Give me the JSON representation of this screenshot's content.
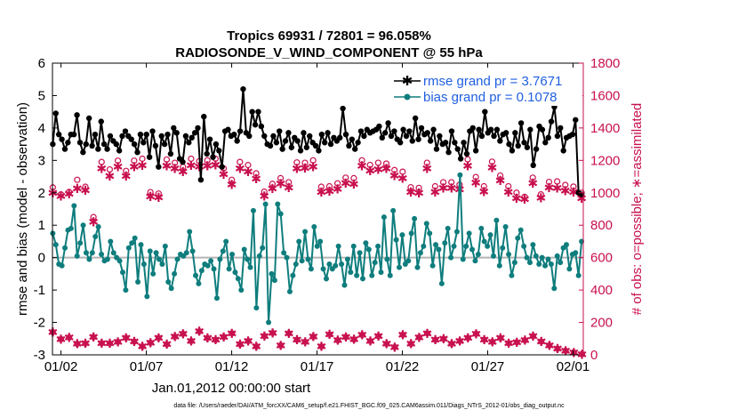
{
  "chart_data": {
    "type": "line",
    "title_line1": "Tropics 69931 / 72801 = 96.058%",
    "title_line2": "RADIOSONDE_V_WIND_COMPONENT @ 55 hPa",
    "xlabel": "Jan.01,2012 00:00:00 start",
    "ylabel_left": "rmse and bias (model - observation)",
    "ylabel_right": "# of obs: o=possible; ∗=assimilated",
    "footnote": "data file: /Users/raeder/DAI/ATM_forcXX/CAM6_setup/f.e21.FHIST_BGC.f09_025.CAM6assim.011/Diags_NTrS_2012-01/obs_diag_output.nc",
    "xlim": [
      0.5,
      31.6
    ],
    "ylim_left": [
      -3,
      6
    ],
    "ylim_right": [
      0,
      1800
    ],
    "x_ticks": [
      {
        "x": 1,
        "label": "01/02"
      },
      {
        "x": 6,
        "label": "01/07"
      },
      {
        "x": 11,
        "label": "01/12"
      },
      {
        "x": 16,
        "label": "01/17"
      },
      {
        "x": 21,
        "label": "01/22"
      },
      {
        "x": 26,
        "label": "01/27"
      },
      {
        "x": 31,
        "label": "02/01"
      }
    ],
    "y_ticks_left": [
      -3,
      -2,
      -1,
      0,
      1,
      2,
      3,
      4,
      5,
      6
    ],
    "y_ticks_right": [
      0,
      200,
      400,
      600,
      800,
      1000,
      1200,
      1400,
      1600,
      1800
    ],
    "colors": {
      "rmse": "#000000",
      "bias": "#0f7d7d",
      "obs": "#c8104f",
      "zero": "#b4b4b4",
      "legend_text": "#1f5fe0"
    },
    "legend": [
      {
        "name": "rmse grand pr = 3.7671",
        "series": "rmse"
      },
      {
        "name": "bias grand pr = 0.1078",
        "series": "bias"
      }
    ],
    "series": [
      {
        "name": "rmse",
        "axis": "left",
        "values": [
          3.5,
          4.45,
          3.8,
          3.65,
          3.35,
          3.55,
          3.8,
          3.8,
          4.4,
          3.55,
          3.25,
          3.5,
          4.3,
          3.45,
          3.8,
          3.35,
          4.2,
          3.5,
          3.35,
          3.75,
          3.6,
          3.5,
          3.3,
          3.75,
          3.9,
          3.75,
          3.65,
          3.5,
          3.25,
          3.8,
          3.55,
          3.8,
          3.1,
          3.9,
          3.45,
          2.8,
          3.75,
          3.5,
          3.8,
          3.2,
          4.0,
          3.85,
          3.05,
          2.95,
          3.75,
          3.55,
          3.7,
          3.85,
          4.0,
          2.4,
          4.35,
          3.2,
          3.65,
          3.1,
          3.5,
          3.3,
          2.8,
          3.9,
          3.95,
          3.75,
          3.8,
          3.6,
          3.9,
          5.2,
          3.85,
          3.75,
          4.5,
          4.1,
          4.5,
          4.05,
          3.75,
          3.5,
          3.45,
          3.75,
          3.55,
          3.9,
          3.35,
          3.6,
          3.85,
          3.4,
          3.7,
          3.6,
          3.3,
          3.85,
          3.4,
          3.75,
          3.55,
          3.45,
          3.3,
          3.8,
          3.55,
          3.85,
          3.5,
          3.7,
          3.6,
          3.7,
          4.6,
          3.8,
          3.45,
          3.65,
          3.35,
          3.55,
          3.9,
          3.75,
          3.95,
          3.85,
          3.9,
          3.95,
          4.05,
          3.7,
          3.85,
          4.15,
          3.75,
          3.9,
          3.65,
          3.55,
          3.95,
          3.75,
          3.9,
          3.6,
          4.3,
          3.65,
          4.0,
          3.8,
          3.85,
          3.6,
          3.95,
          3.35,
          3.75,
          3.5,
          3.55,
          3.25,
          3.9,
          3.55,
          3.35,
          3.05,
          3.55,
          3.2,
          3.9,
          4.0,
          3.3,
          3.95,
          3.75,
          4.5,
          3.85,
          3.95,
          3.75,
          3.95,
          3.6,
          3.8,
          3.85,
          3.5,
          3.3,
          3.85,
          3.45,
          4.15,
          3.55,
          3.4,
          3.95,
          2.85,
          3.35,
          4.05,
          3.95,
          3.55,
          3.7,
          4.2,
          4.65,
          3.75,
          4.0,
          3.3,
          3.7,
          3.75,
          3.8,
          4.25,
          2.0,
          1.95
        ]
      },
      {
        "name": "bias",
        "axis": "left",
        "values": [
          0.75,
          0.4,
          -0.2,
          -0.25,
          0.3,
          0.85,
          0.9,
          1.6,
          0.05,
          0.45,
          1.0,
          0.15,
          -0.05,
          0.15,
          0.65,
          0.95,
          0.1,
          -0.1,
          -0.05,
          0.5,
          0.15,
          0.0,
          -0.1,
          -0.45,
          -1.0,
          0.3,
          0.45,
          0.6,
          -0.75,
          0.4,
          -0.2,
          -1.2,
          0.2,
          -0.5,
          0.15,
          -0.05,
          -0.2,
          0.35,
          -0.75,
          -0.95,
          -0.5,
          -0.05,
          0.1,
          0.05,
          0.15,
          0.8,
          0.2,
          -0.55,
          -0.8,
          -0.4,
          -0.2,
          -0.25,
          -0.1,
          -0.35,
          -1.25,
          -0.05,
          0.2,
          0.5,
          -0.35,
          0.1,
          -0.45,
          -0.65,
          -1.0,
          0.25,
          -0.05,
          -0.3,
          1.45,
          -1.55,
          0.05,
          0.3,
          1.65,
          -2.0,
          -0.5,
          -0.7,
          1.65,
          1.35,
          0.15,
          0.0,
          -1.05,
          -0.55,
          -0.2,
          0.5,
          -0.1,
          0.8,
          -0.05,
          -0.35,
          0.95,
          0.35,
          0.5,
          -0.35,
          -0.65,
          -0.2,
          -0.35,
          -0.25,
          0.35,
          -0.2,
          -0.85,
          -0.05,
          -0.45,
          0.35,
          -0.55,
          0.15,
          -0.65,
          0.45,
          0.25,
          -0.55,
          -0.15,
          0.35,
          -0.45,
          1.25,
          -0.05,
          -0.55,
          1.45,
          0.55,
          -0.3,
          0.7,
          -0.2,
          -0.1,
          0.75,
          1.2,
          -0.3,
          0.15,
          0.35,
          1.05,
          0.75,
          -0.25,
          0.4,
          0.25,
          -0.8,
          0.45,
          0.9,
          0.0,
          0.35,
          0.8,
          2.55,
          -0.05,
          0.35,
          0.75,
          0.25,
          -0.1,
          0.1,
          0.9,
          0.5,
          0.35,
          0.7,
          0.05,
          1.15,
          -0.25,
          0.3,
          0.95,
          0.1,
          -0.55,
          -0.15,
          0.6,
          0.85,
          0.35,
          0.0,
          -0.15,
          0.4,
          0.05,
          -0.2,
          0.0,
          -0.25,
          -0.05,
          -0.2,
          -0.95,
          0.05,
          -0.15,
          0.3,
          0.4,
          -0.35,
          0.1,
          0.15,
          -0.55,
          0.5
        ]
      },
      {
        "name": "possible",
        "axis": "right",
        "marker": "o",
        "values": [
          1033,
          990,
          1005,
          1080,
          1037,
          850,
          1190,
          1144,
          1198,
          1135,
          1198,
          1210,
          1004,
          995,
          1205,
          1185,
          1160,
          1210,
          1195,
          1200,
          1210,
          1150,
          1080,
          1190,
          1171,
          1120,
          1007,
          1055,
          1090,
          1065,
          1187,
          1185,
          1200,
          1037,
          1040,
          1058,
          1093,
          1090,
          1200,
          1172,
          1185,
          1180,
          1140,
          1130,
          1034,
          1030,
          1185,
          1040,
          1065,
          1065,
          1050,
          1206,
          1097,
          1040,
          1192,
          1106,
          1040,
          1000,
          975,
          1093,
          990,
          1067,
          1070,
          1048,
          1038,
          1000
        ]
      },
      {
        "name": "assimilated",
        "axis": "right",
        "marker": "*",
        "values": [
          1000,
          980,
          993,
          1025,
          1016,
          820,
          1150,
          1103,
          1160,
          1102,
          1160,
          1170,
          978,
          970,
          1166,
          1150,
          1130,
          1170,
          1160,
          1165,
          1172,
          1115,
          1050,
          1150,
          1131,
          1087,
          980,
          1027,
          1056,
          1033,
          1150,
          1153,
          1160,
          1005,
          1011,
          1024,
          1058,
          1055,
          1165,
          1136,
          1145,
          1150,
          1105,
          1090,
          1004,
          1000,
          1150,
          1005,
          1030,
          1030,
          1020,
          1165,
          1061,
          1006,
          1156,
          1075,
          1005,
          965,
          960,
          1060,
          968,
          1032,
          1030,
          1013,
          1005,
          965
        ]
      },
      {
        "name": "obs_bottom",
        "axis": "right",
        "marker": "*",
        "values": [
          140,
          97,
          107,
          68,
          70,
          110,
          72,
          70,
          80,
          105,
          82,
          52,
          75,
          105,
          65,
          112,
          130,
          85,
          145,
          103,
          93,
          111,
          133,
          65,
          85,
          52,
          116,
          135,
          58,
          133,
          93,
          80,
          112,
          52,
          125,
          90,
          110,
          95,
          123,
          85,
          115,
          68,
          48,
          124,
          68,
          108,
          133,
          93,
          98,
          68,
          85,
          105,
          130,
          94,
          80,
          103,
          72,
          78,
          90,
          115,
          82,
          58,
          38,
          25,
          15,
          4
        ]
      }
    ]
  }
}
